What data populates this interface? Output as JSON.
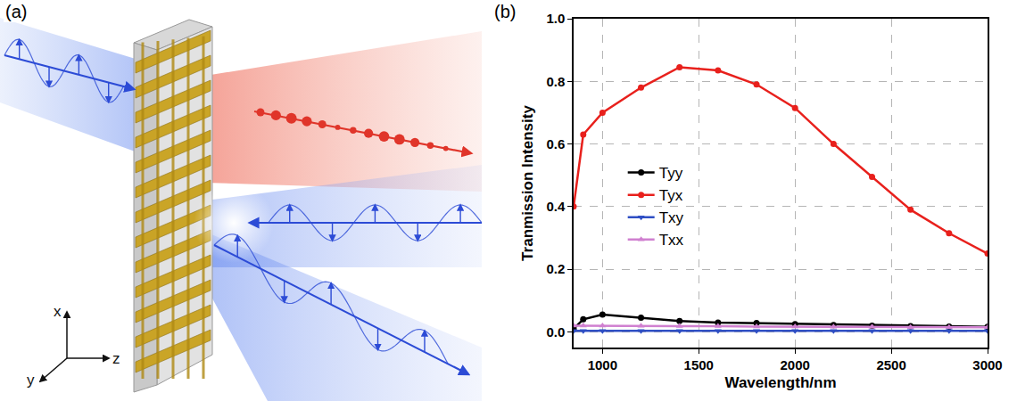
{
  "panel_labels": [
    "(a)",
    "(b)"
  ],
  "illustration": {
    "axis_labels": [
      "x",
      "y",
      "z"
    ]
  },
  "chart_data": {
    "type": "line",
    "x_label": "Wavelength/nm",
    "y_label": "Tranmission Intensity",
    "x": [
      850,
      900,
      1000,
      1200,
      1400,
      1600,
      1800,
      2000,
      2200,
      2400,
      2600,
      2800,
      3000
    ],
    "series": [
      {
        "name": "Tyy",
        "color": "#000000",
        "marker": "circle",
        "values": [
          0.01,
          0.04,
          0.055,
          0.045,
          0.035,
          0.03,
          0.028,
          0.025,
          0.022,
          0.02,
          0.018,
          0.017,
          0.016
        ]
      },
      {
        "name": "Tyx",
        "color": "#e8201c",
        "marker": "circle",
        "values": [
          0.4,
          0.63,
          0.7,
          0.78,
          0.845,
          0.835,
          0.79,
          0.715,
          0.6,
          0.495,
          0.39,
          0.315,
          0.25
        ]
      },
      {
        "name": "Txy",
        "color": "#2f4fc4",
        "marker": "triangle-down",
        "values": [
          0.003,
          0.003,
          0.003,
          0.003,
          0.003,
          0.003,
          0.003,
          0.003,
          0.003,
          0.003,
          0.003,
          0.003,
          0.003
        ]
      },
      {
        "name": "Txx",
        "color": "#d080d0",
        "marker": "triangle-up",
        "values": [
          0.02,
          0.02,
          0.02,
          0.019,
          0.018,
          0.018,
          0.017,
          0.017,
          0.016,
          0.016,
          0.015,
          0.015,
          0.015
        ]
      }
    ],
    "xlim": [
      850,
      3000
    ],
    "ylim": [
      -0.05,
      1.0
    ],
    "xticks": [
      1000,
      1500,
      2000,
      2500,
      3000
    ],
    "yticks": [
      {
        "value": 0,
        "label": "0.0"
      },
      0.2,
      0.4,
      0.6,
      0.8,
      {
        "value": 1,
        "label": "1.0"
      }
    ],
    "grid": true,
    "legend": "left"
  }
}
